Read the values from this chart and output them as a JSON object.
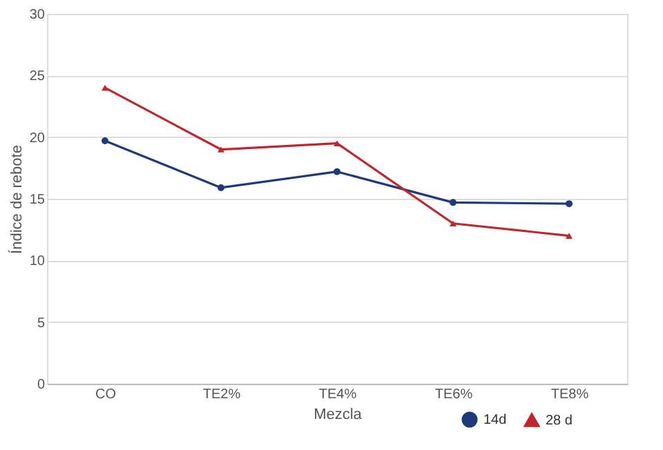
{
  "chart_data": {
    "type": "line",
    "xlabel": "Mezcla",
    "ylabel": "Índice de rebote",
    "categories": [
      "CO",
      "TE2%",
      "TE4%",
      "TE6%",
      "TE8%"
    ],
    "series": [
      {
        "name": "14d",
        "color": "#1f3a7a",
        "marker": "circle",
        "values": [
          19.7,
          15.9,
          17.2,
          14.7,
          14.6
        ]
      },
      {
        "name": "28 d",
        "color": "#c0272d",
        "marker": "triangle",
        "values": [
          24,
          19,
          19.5,
          13,
          12
        ]
      }
    ],
    "ylim": [
      0,
      30
    ],
    "yticks": [
      0,
      5,
      10,
      15,
      20,
      25,
      30
    ],
    "grid": "y",
    "legend": "bottom right"
  }
}
